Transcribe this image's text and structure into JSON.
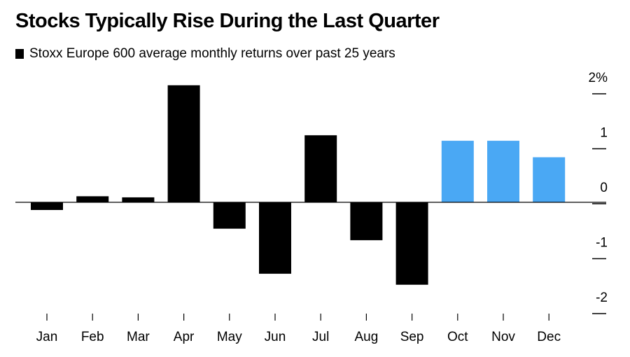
{
  "chart_data": {
    "type": "bar",
    "title": "Stocks Typically Rise During the Last Quarter",
    "legend": "Stoxx Europe 600 average monthly returns over past 25 years",
    "categories": [
      "Jan",
      "Feb",
      "Mar",
      "Apr",
      "May",
      "Jun",
      "Jul",
      "Aug",
      "Sep",
      "Oct",
      "Nov",
      "Dec"
    ],
    "values": [
      -0.14,
      0.11,
      0.09,
      2.13,
      -0.48,
      -1.3,
      1.22,
      -0.69,
      -1.5,
      1.12,
      1.12,
      0.82
    ],
    "highlight": [
      false,
      false,
      false,
      false,
      false,
      false,
      false,
      false,
      false,
      true,
      true,
      true
    ],
    "colors": {
      "default": "#000000",
      "highlight": "#4aa8f4"
    },
    "ylim": [
      -2,
      2
    ],
    "yticks": [
      {
        "value": 2,
        "label": "2%"
      },
      {
        "value": 1,
        "label": "1"
      },
      {
        "value": 0,
        "label": "0"
      },
      {
        "value": -1,
        "label": "-1"
      },
      {
        "value": -2,
        "label": "-2"
      }
    ],
    "xlabel": "",
    "ylabel": "",
    "grid": false
  }
}
